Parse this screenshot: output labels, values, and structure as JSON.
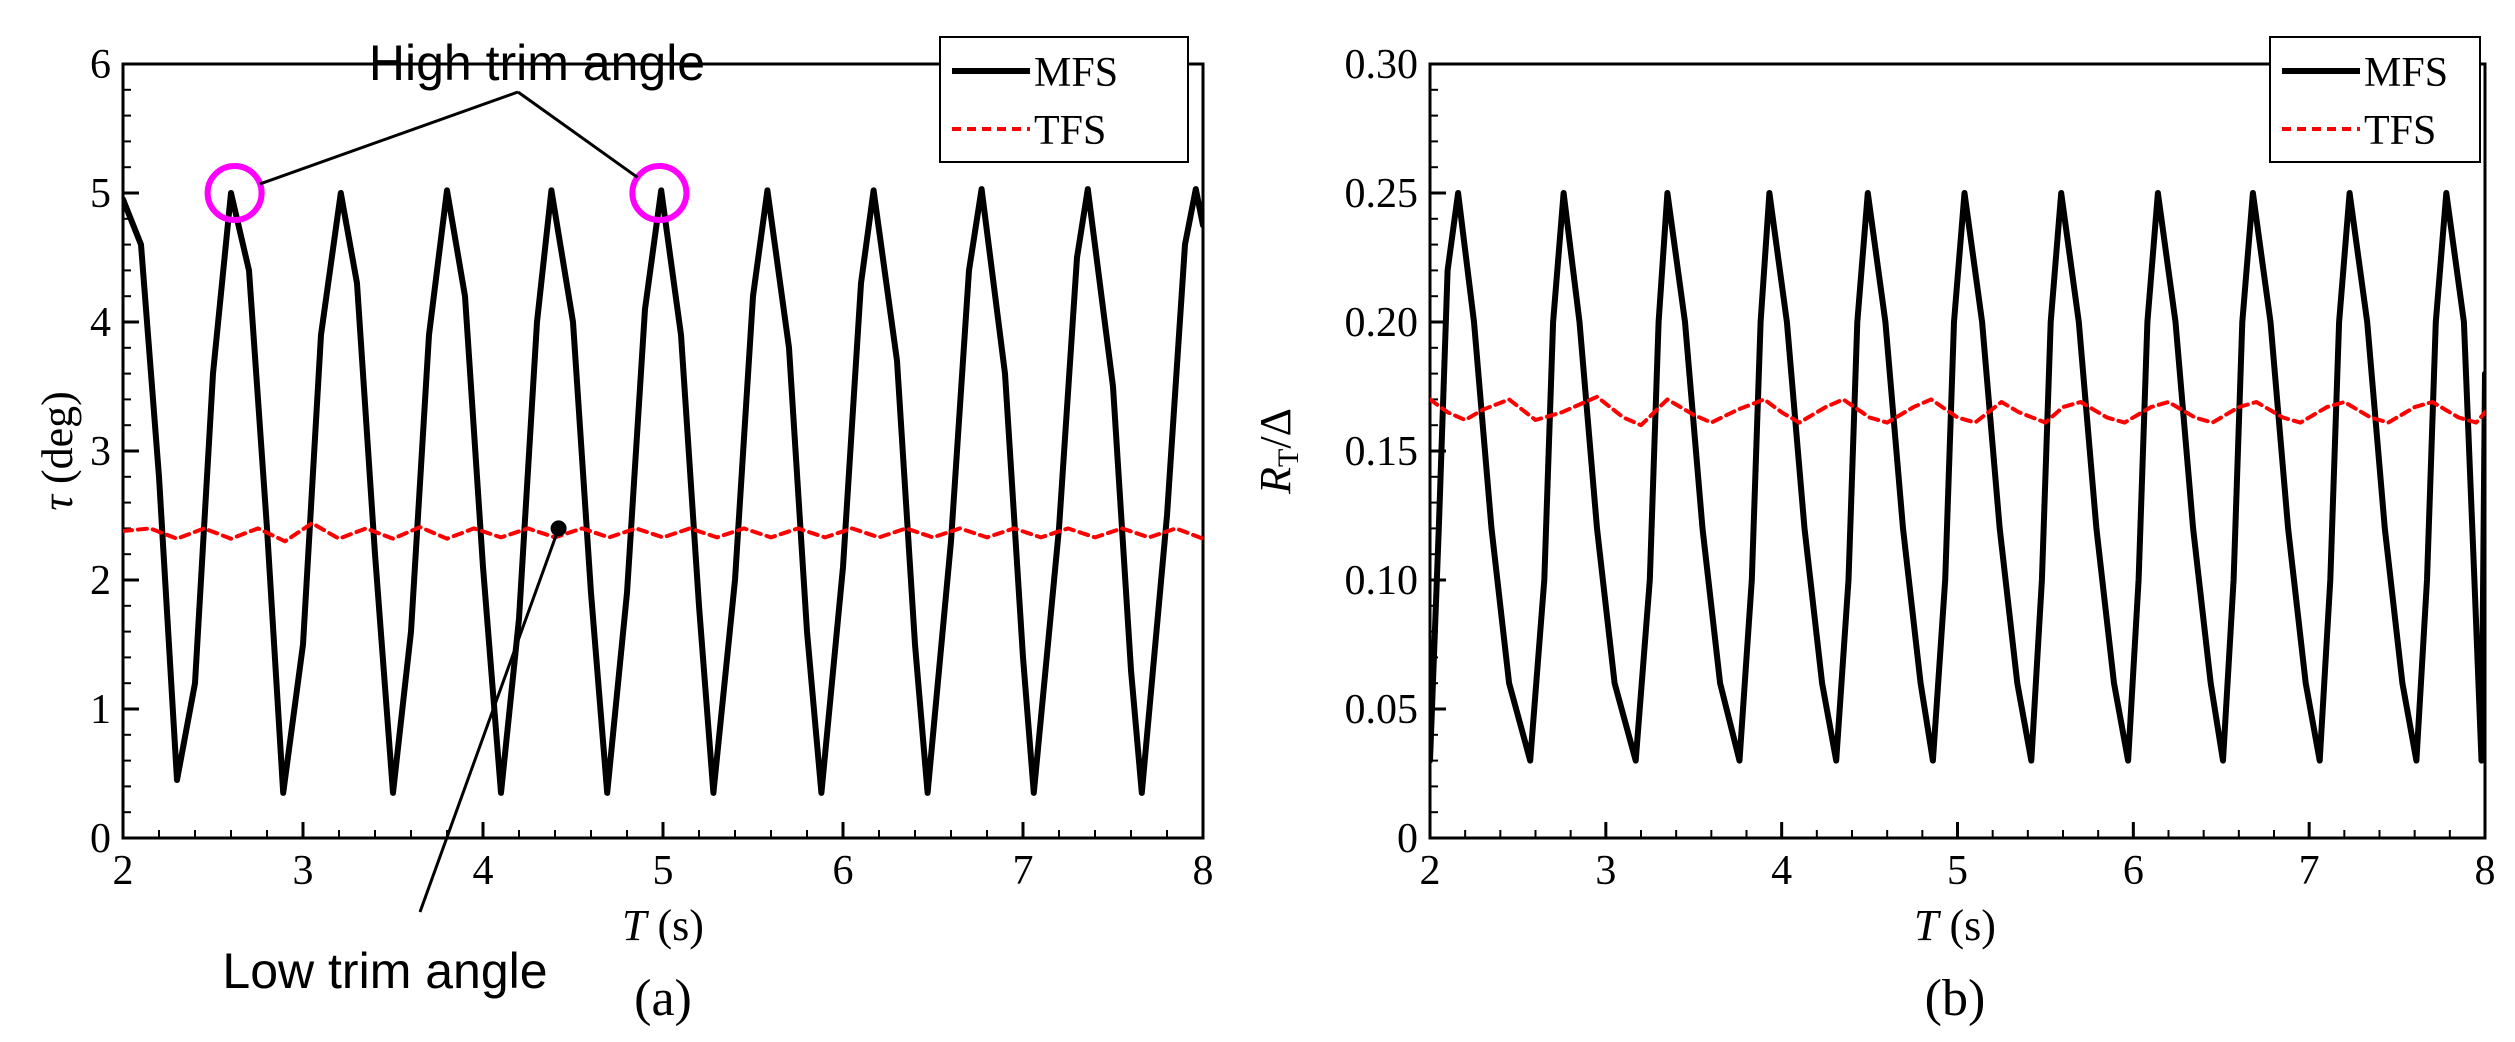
{
  "chart_data": [
    {
      "id": "a",
      "type": "line",
      "panel_label": "(a)",
      "xlabel_italic": "T",
      "xlabel_rest": " (s)",
      "ylabel_italic": "τ",
      "ylabel_rest": " (deg)",
      "xlim": [
        2,
        8
      ],
      "ylim": [
        0,
        6
      ],
      "xticks": [
        2,
        3,
        4,
        5,
        6,
        7,
        8
      ],
      "yticks": [
        0,
        1,
        2,
        3,
        4,
        5,
        6
      ],
      "ytick_decimals": 0,
      "legend_position": "top-right",
      "series": [
        {
          "name": "MFS",
          "style": "solid",
          "color": "#000000",
          "points": [
            [
              2.0,
              4.95
            ],
            [
              2.1,
              4.6
            ],
            [
              2.2,
              2.8
            ],
            [
              2.3,
              0.45
            ],
            [
              2.4,
              1.2
            ],
            [
              2.5,
              3.6
            ],
            [
              2.6,
              5.0
            ],
            [
              2.7,
              4.4
            ],
            [
              2.8,
              2.4
            ],
            [
              2.89,
              0.35
            ],
            [
              3.0,
              1.5
            ],
            [
              3.1,
              3.9
            ],
            [
              3.21,
              5.0
            ],
            [
              3.3,
              4.3
            ],
            [
              3.4,
              2.2
            ],
            [
              3.5,
              0.35
            ],
            [
              3.6,
              1.6
            ],
            [
              3.7,
              3.9
            ],
            [
              3.8,
              5.02
            ],
            [
              3.9,
              4.2
            ],
            [
              4.0,
              2.1
            ],
            [
              4.1,
              0.35
            ],
            [
              4.2,
              1.7
            ],
            [
              4.3,
              4.0
            ],
            [
              4.38,
              5.02
            ],
            [
              4.5,
              4.0
            ],
            [
              4.6,
              1.9
            ],
            [
              4.69,
              0.35
            ],
            [
              4.8,
              1.9
            ],
            [
              4.9,
              4.1
            ],
            [
              4.99,
              5.02
            ],
            [
              5.1,
              3.9
            ],
            [
              5.2,
              1.8
            ],
            [
              5.28,
              0.35
            ],
            [
              5.4,
              2.0
            ],
            [
              5.5,
              4.2
            ],
            [
              5.58,
              5.02
            ],
            [
              5.7,
              3.8
            ],
            [
              5.8,
              1.6
            ],
            [
              5.88,
              0.35
            ],
            [
              6.0,
              2.1
            ],
            [
              6.1,
              4.3
            ],
            [
              6.17,
              5.02
            ],
            [
              6.3,
              3.7
            ],
            [
              6.4,
              1.5
            ],
            [
              6.47,
              0.35
            ],
            [
              6.6,
              2.3
            ],
            [
              6.7,
              4.4
            ],
            [
              6.77,
              5.03
            ],
            [
              6.9,
              3.6
            ],
            [
              7.0,
              1.4
            ],
            [
              7.06,
              0.35
            ],
            [
              7.2,
              2.4
            ],
            [
              7.3,
              4.5
            ],
            [
              7.36,
              5.03
            ],
            [
              7.5,
              3.5
            ],
            [
              7.6,
              1.3
            ],
            [
              7.66,
              0.35
            ],
            [
              7.8,
              2.5
            ],
            [
              7.9,
              4.6
            ],
            [
              7.96,
              5.03
            ],
            [
              8.0,
              4.75
            ]
          ]
        },
        {
          "name": "TFS",
          "style": "dashed",
          "color": "#ff0000",
          "points": [
            [
              2.0,
              2.38
            ],
            [
              2.15,
              2.4
            ],
            [
              2.3,
              2.32
            ],
            [
              2.45,
              2.4
            ],
            [
              2.6,
              2.32
            ],
            [
              2.75,
              2.4
            ],
            [
              2.9,
              2.3
            ],
            [
              3.05,
              2.44
            ],
            [
              3.2,
              2.32
            ],
            [
              3.35,
              2.4
            ],
            [
              3.5,
              2.32
            ],
            [
              3.65,
              2.41
            ],
            [
              3.8,
              2.32
            ],
            [
              3.95,
              2.4
            ],
            [
              4.1,
              2.33
            ],
            [
              4.25,
              2.4
            ],
            [
              4.4,
              2.33
            ],
            [
              4.55,
              2.4
            ],
            [
              4.7,
              2.33
            ],
            [
              4.85,
              2.4
            ],
            [
              5.0,
              2.33
            ],
            [
              5.15,
              2.4
            ],
            [
              5.3,
              2.33
            ],
            [
              5.45,
              2.4
            ],
            [
              5.6,
              2.33
            ],
            [
              5.75,
              2.4
            ],
            [
              5.9,
              2.33
            ],
            [
              6.05,
              2.4
            ],
            [
              6.2,
              2.33
            ],
            [
              6.35,
              2.4
            ],
            [
              6.5,
              2.33
            ],
            [
              6.65,
              2.4
            ],
            [
              6.8,
              2.33
            ],
            [
              6.95,
              2.4
            ],
            [
              7.1,
              2.33
            ],
            [
              7.25,
              2.4
            ],
            [
              7.4,
              2.33
            ],
            [
              7.55,
              2.4
            ],
            [
              7.7,
              2.33
            ],
            [
              7.85,
              2.4
            ],
            [
              8.0,
              2.32
            ]
          ]
        }
      ],
      "annotations": {
        "high_label": "High trim angle",
        "high_points": [
          [
            2.62,
            5.0
          ],
          [
            4.98,
            5.0
          ]
        ],
        "low_label": "Low trim angle",
        "low_point": [
          4.42,
          2.4
        ]
      }
    },
    {
      "id": "b",
      "type": "line",
      "panel_label": "(b)",
      "xlabel_italic": "T",
      "xlabel_rest": " (s)",
      "ylabel_italic": "R",
      "ylabel_sub": "T",
      "ylabel_rest": "/Δ",
      "xlim": [
        2,
        8
      ],
      "ylim": [
        0,
        0.3
      ],
      "xticks": [
        2,
        3,
        4,
        5,
        6,
        7,
        8
      ],
      "yticks": [
        0,
        0.05,
        0.1,
        0.15,
        0.2,
        0.25,
        0.3
      ],
      "ytick_decimals": 2,
      "legend_position": "top-right",
      "series": [
        {
          "name": "MFS",
          "style": "solid",
          "color": "#000000",
          "points": [
            [
              2.0,
              0.03
            ],
            [
              2.05,
              0.12
            ],
            [
              2.1,
              0.22
            ],
            [
              2.16,
              0.25
            ],
            [
              2.25,
              0.2
            ],
            [
              2.35,
              0.12
            ],
            [
              2.45,
              0.06
            ],
            [
              2.57,
              0.03
            ],
            [
              2.65,
              0.1
            ],
            [
              2.7,
              0.2
            ],
            [
              2.76,
              0.25
            ],
            [
              2.85,
              0.2
            ],
            [
              2.95,
              0.12
            ],
            [
              3.05,
              0.06
            ],
            [
              3.17,
              0.03
            ],
            [
              3.25,
              0.1
            ],
            [
              3.3,
              0.2
            ],
            [
              3.35,
              0.25
            ],
            [
              3.45,
              0.2
            ],
            [
              3.55,
              0.12
            ],
            [
              3.65,
              0.06
            ],
            [
              3.76,
              0.03
            ],
            [
              3.83,
              0.1
            ],
            [
              3.88,
              0.2
            ],
            [
              3.93,
              0.25
            ],
            [
              4.03,
              0.2
            ],
            [
              4.13,
              0.12
            ],
            [
              4.23,
              0.06
            ],
            [
              4.31,
              0.03
            ],
            [
              4.38,
              0.1
            ],
            [
              4.43,
              0.2
            ],
            [
              4.49,
              0.25
            ],
            [
              4.59,
              0.2
            ],
            [
              4.69,
              0.12
            ],
            [
              4.79,
              0.06
            ],
            [
              4.86,
              0.03
            ],
            [
              4.93,
              0.1
            ],
            [
              4.98,
              0.2
            ],
            [
              5.04,
              0.25
            ],
            [
              5.14,
              0.2
            ],
            [
              5.24,
              0.12
            ],
            [
              5.34,
              0.06
            ],
            [
              5.42,
              0.03
            ],
            [
              5.48,
              0.1
            ],
            [
              5.53,
              0.2
            ],
            [
              5.59,
              0.25
            ],
            [
              5.69,
              0.2
            ],
            [
              5.79,
              0.12
            ],
            [
              5.89,
              0.06
            ],
            [
              5.97,
              0.03
            ],
            [
              6.03,
              0.1
            ],
            [
              6.08,
              0.2
            ],
            [
              6.14,
              0.25
            ],
            [
              6.24,
              0.2
            ],
            [
              6.34,
              0.12
            ],
            [
              6.44,
              0.06
            ],
            [
              6.51,
              0.03
            ],
            [
              6.57,
              0.1
            ],
            [
              6.62,
              0.2
            ],
            [
              6.68,
              0.25
            ],
            [
              6.78,
              0.2
            ],
            [
              6.88,
              0.12
            ],
            [
              6.98,
              0.06
            ],
            [
              7.06,
              0.03
            ],
            [
              7.12,
              0.1
            ],
            [
              7.17,
              0.2
            ],
            [
              7.23,
              0.25
            ],
            [
              7.33,
              0.2
            ],
            [
              7.43,
              0.12
            ],
            [
              7.53,
              0.06
            ],
            [
              7.61,
              0.03
            ],
            [
              7.67,
              0.1
            ],
            [
              7.72,
              0.2
            ],
            [
              7.78,
              0.25
            ],
            [
              7.88,
              0.2
            ],
            [
              7.94,
              0.1
            ],
            [
              7.98,
              0.03
            ],
            [
              8.0,
              0.18
            ]
          ]
        },
        {
          "name": "TFS",
          "style": "dashed",
          "color": "#ff0000",
          "points": [
            [
              2.0,
              0.17
            ],
            [
              2.1,
              0.165
            ],
            [
              2.2,
              0.162
            ],
            [
              2.3,
              0.166
            ],
            [
              2.45,
              0.17
            ],
            [
              2.6,
              0.162
            ],
            [
              2.75,
              0.165
            ],
            [
              2.95,
              0.171
            ],
            [
              3.1,
              0.163
            ],
            [
              3.2,
              0.16
            ],
            [
              3.35,
              0.17
            ],
            [
              3.5,
              0.164
            ],
            [
              3.6,
              0.161
            ],
            [
              3.75,
              0.166
            ],
            [
              3.9,
              0.17
            ],
            [
              4.0,
              0.165
            ],
            [
              4.1,
              0.161
            ],
            [
              4.25,
              0.167
            ],
            [
              4.35,
              0.17
            ],
            [
              4.5,
              0.163
            ],
            [
              4.6,
              0.161
            ],
            [
              4.75,
              0.167
            ],
            [
              4.85,
              0.17
            ],
            [
              5.0,
              0.163
            ],
            [
              5.1,
              0.161
            ],
            [
              5.25,
              0.169
            ],
            [
              5.35,
              0.165
            ],
            [
              5.5,
              0.161
            ],
            [
              5.6,
              0.167
            ],
            [
              5.7,
              0.169
            ],
            [
              5.85,
              0.163
            ],
            [
              5.95,
              0.161
            ],
            [
              6.1,
              0.167
            ],
            [
              6.2,
              0.169
            ],
            [
              6.35,
              0.163
            ],
            [
              6.45,
              0.161
            ],
            [
              6.6,
              0.167
            ],
            [
              6.7,
              0.169
            ],
            [
              6.85,
              0.163
            ],
            [
              6.95,
              0.161
            ],
            [
              7.1,
              0.167
            ],
            [
              7.2,
              0.169
            ],
            [
              7.35,
              0.163
            ],
            [
              7.45,
              0.161
            ],
            [
              7.6,
              0.167
            ],
            [
              7.7,
              0.169
            ],
            [
              7.85,
              0.163
            ],
            [
              7.95,
              0.161
            ],
            [
              8.0,
              0.165
            ]
          ]
        }
      ]
    }
  ]
}
